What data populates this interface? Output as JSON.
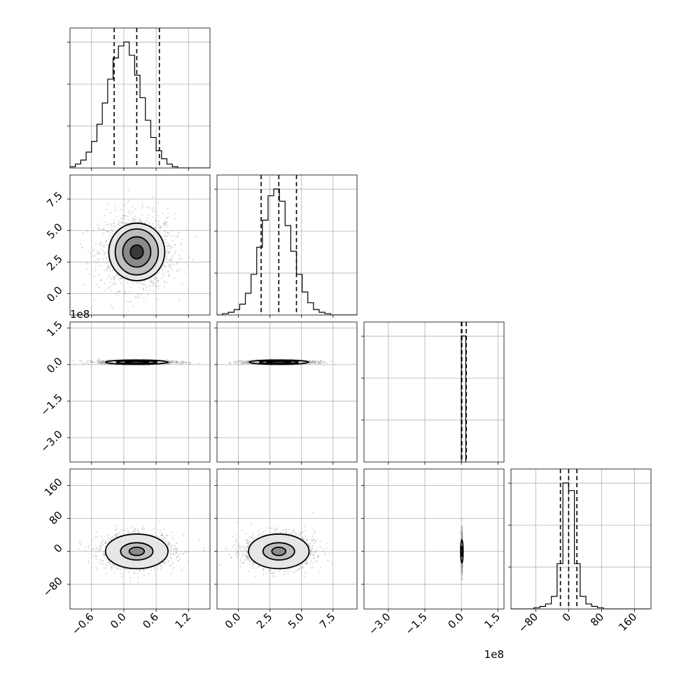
{
  "chart_data": {
    "type": "corner",
    "title": "",
    "grid": true,
    "n_params": 4,
    "quantile_lines": "dashed",
    "params": [
      {
        "index": 0,
        "range": [
          -1.0,
          1.6
        ],
        "ticks": [
          "−0.6",
          "0.0",
          "0.6",
          "1.2"
        ],
        "tick_values": [
          -0.6,
          0.0,
          0.6,
          1.2
        ],
        "median": 0.24,
        "q16": -0.18,
        "q84": 0.66
      },
      {
        "index": 1,
        "range": [
          -1.7,
          9.4
        ],
        "ticks": [
          "0.0",
          "2.5",
          "5.0",
          "7.5"
        ],
        "tick_values": [
          0.0,
          2.5,
          5.0,
          7.5
        ],
        "median": 3.2,
        "q16": 1.8,
        "q84": 4.6
      },
      {
        "index": 2,
        "range": [
          -4.0,
          1.75
        ],
        "ticks": [
          "−3.0",
          "−1.5",
          "0.0",
          "1.5"
        ],
        "tick_values": [
          -3.0,
          -1.5,
          0.0,
          1.5
        ],
        "offset_text": "1e8",
        "median": 0.02,
        "q16": 0.0,
        "q84": 0.2
      },
      {
        "index": 3,
        "range": [
          -140,
          200
        ],
        "ticks": [
          "−80",
          "0",
          "80",
          "160"
        ],
        "tick_values": [
          -80,
          0,
          80,
          160
        ],
        "median": 0,
        "q16": -20,
        "q84": 20
      }
    ],
    "histograms": [
      {
        "param": 0,
        "x_start": -1.0,
        "x_step": 0.1,
        "counts": [
          1,
          3,
          6,
          12,
          20,
          33,
          49,
          67,
          83,
          92,
          95,
          85,
          70,
          53,
          36,
          23,
          13,
          7,
          3,
          1,
          0,
          0,
          0,
          0,
          0,
          0
        ]
      },
      {
        "param": 1,
        "x_start": -1.7,
        "x_step": 0.45,
        "counts": [
          0,
          1,
          2,
          4,
          8,
          16,
          30,
          50,
          70,
          88,
          93,
          84,
          66,
          47,
          30,
          17,
          9,
          4,
          2,
          1,
          0,
          0,
          0,
          0,
          0
        ]
      },
      {
        "param": 2,
        "x_start": 0.0,
        "x_step": 0.18,
        "counts": [
          100
        ]
      },
      {
        "param": 3,
        "x_start": -140,
        "x_step": 14,
        "counts": [
          0,
          0,
          0,
          0,
          1,
          2,
          4,
          10,
          36,
          100,
          94,
          36,
          10,
          4,
          2,
          1,
          0,
          0,
          0,
          0,
          0,
          0,
          0,
          0
        ]
      }
    ],
    "joint": [
      {
        "row": 1,
        "col": 0,
        "center": [
          0.24,
          3.3
        ],
        "sigma": [
          0.35,
          1.5
        ],
        "contour_scale": [
          [
            0.12,
            0.55
          ],
          [
            0.26,
            1.2
          ],
          [
            0.4,
            1.82
          ],
          [
            0.52,
            2.28
          ]
        ]
      },
      {
        "row": 2,
        "col": 0,
        "center": [
          0.24,
          0.1
        ],
        "sigma": [
          0.35,
          0.04
        ],
        "contour_scale": [
          [
            0.22,
            0.035
          ],
          [
            0.38,
            0.06
          ],
          [
            0.58,
            0.09
          ]
        ]
      },
      {
        "row": 2,
        "col": 1,
        "center": [
          3.2,
          0.1
        ],
        "sigma": [
          1.4,
          0.04
        ],
        "contour_scale": [
          [
            0.95,
            0.035
          ],
          [
            1.55,
            0.06
          ],
          [
            2.35,
            0.09
          ]
        ]
      },
      {
        "row": 3,
        "col": 0,
        "center": [
          0.24,
          0
        ],
        "sigma": [
          0.35,
          22
        ],
        "contour_scale": [
          [
            0.14,
            10
          ],
          [
            0.3,
            21
          ],
          [
            0.58,
            42
          ]
        ]
      },
      {
        "row": 3,
        "col": 1,
        "center": [
          3.2,
          0
        ],
        "sigma": [
          1.4,
          22
        ],
        "contour_scale": [
          [
            0.55,
            10
          ],
          [
            1.25,
            21
          ],
          [
            2.4,
            42
          ]
        ]
      },
      {
        "row": 3,
        "col": 2,
        "center": [
          0.02,
          0
        ],
        "sigma": [
          0.01,
          22
        ],
        "contour_scale": [
          [
            0.03,
            12
          ],
          [
            0.05,
            28
          ]
        ]
      }
    ]
  }
}
